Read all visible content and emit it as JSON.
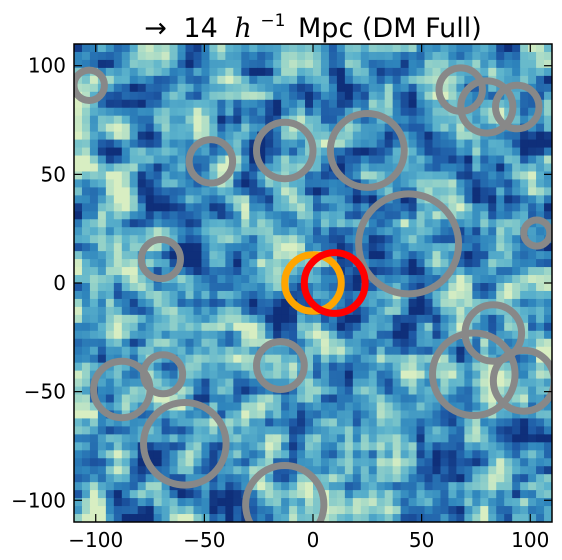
{
  "chart_data": {
    "type": "heatmap",
    "title": "→ 14 h⁻¹ Mpc (DM Full)",
    "title_parts": {
      "arrow": "→",
      "number": "14",
      "h": "h",
      "exp": "−1",
      "rest": "Mpc (DM Full)"
    },
    "xlabel": "",
    "ylabel": "",
    "xlim": [
      -110,
      110
    ],
    "ylim": [
      -110,
      110
    ],
    "x_ticks": [
      -100,
      -50,
      0,
      50,
      100
    ],
    "y_ticks": [
      -100,
      -50,
      0,
      50,
      100
    ],
    "x_tick_labels": [
      "−100",
      "−50",
      "0",
      "50",
      "100"
    ],
    "y_tick_labels": [
      "−100",
      "−50",
      "0",
      "50",
      "100"
    ],
    "grid": false,
    "colormap": [
      "#0f2f7a",
      "#1e5aa6",
      "#2f86bd",
      "#5cb3cc",
      "#98d4c8",
      "#d8eec2"
    ],
    "circles": [
      {
        "x": -103,
        "y": 91,
        "r": 7,
        "color": "#888888"
      },
      {
        "x": 68,
        "y": 89,
        "r": 10,
        "color": "#888888"
      },
      {
        "x": 80,
        "y": 81,
        "r": 12,
        "color": "#888888"
      },
      {
        "x": 94,
        "y": 81,
        "r": 10,
        "color": "#888888"
      },
      {
        "x": -47,
        "y": 56,
        "r": 10,
        "color": "#888888"
      },
      {
        "x": -13,
        "y": 61,
        "r": 13,
        "color": "#888888"
      },
      {
        "x": 25,
        "y": 61,
        "r": 17,
        "color": "#888888"
      },
      {
        "x": 44,
        "y": 18,
        "r": 23,
        "color": "#888888"
      },
      {
        "x": 103,
        "y": 23,
        "r": 6,
        "color": "#888888"
      },
      {
        "x": -70,
        "y": 11,
        "r": 9,
        "color": "#888888"
      },
      {
        "x": 0,
        "y": 0,
        "r": 13,
        "color": "#ffa500"
      },
      {
        "x": 10,
        "y": 0,
        "r": 14,
        "color": "#ff0000"
      },
      {
        "x": 83,
        "y": -23,
        "r": 13,
        "color": "#888888"
      },
      {
        "x": -15,
        "y": -38,
        "r": 11,
        "color": "#888888"
      },
      {
        "x": -69,
        "y": -42,
        "r": 9,
        "color": "#888888"
      },
      {
        "x": -88,
        "y": -49,
        "r": 13,
        "color": "#888888"
      },
      {
        "x": 74,
        "y": -42,
        "r": 19,
        "color": "#888888"
      },
      {
        "x": 97,
        "y": -45,
        "r": 14,
        "color": "#888888"
      },
      {
        "x": -59,
        "y": -74,
        "r": 19,
        "color": "#888888"
      },
      {
        "x": -13,
        "y": -102,
        "r": 18,
        "color": "#888888"
      }
    ]
  }
}
